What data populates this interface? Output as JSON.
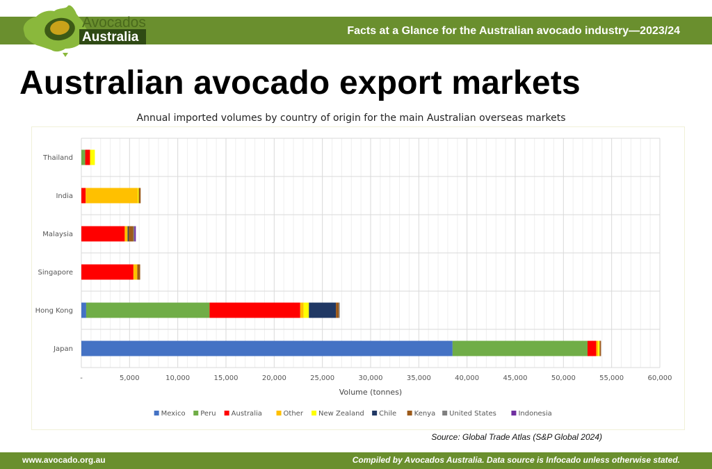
{
  "header": {
    "logo_line1": "Avocados",
    "logo_line2": "Australia",
    "banner_text": "Facts at a Glance for the Australian avocado industry—2023/24"
  },
  "page_title": "Australian avocado export markets",
  "source_note": "Source: Global Trade Atlas (S&P Global 2024)",
  "footer": {
    "website": "www.avocado.org.au",
    "credit": "Compiled by Avocados Australia. Data source is Infocado unless otherwise stated."
  },
  "colors": {
    "header_green": "#6a8f2e",
    "logo_dark": "#2f4a14"
  },
  "chart_data": {
    "type": "bar",
    "orientation": "horizontal",
    "stacked": true,
    "title": "Annual imported volumes by country of origin for the main Australian overseas markets",
    "xlabel": "Volume (tonnes)",
    "ylabel": "",
    "xlim": [
      0,
      60000
    ],
    "x_ticks": [
      0,
      5000,
      10000,
      15000,
      20000,
      25000,
      30000,
      35000,
      40000,
      45000,
      50000,
      55000,
      60000
    ],
    "x_tick_labels": [
      "-",
      "5,000",
      "10,000",
      "15,000",
      "20,000",
      "25,000",
      "30,000",
      "35,000",
      "40,000",
      "45,000",
      "50,000",
      "55,000",
      "60,000"
    ],
    "grid": true,
    "legend_position": "bottom",
    "categories": [
      "Thailand",
      "India",
      "Malaysia",
      "Singapore",
      "Hong Kong",
      "Japan"
    ],
    "series": [
      {
        "name": "Mexico",
        "color": "#4472c4",
        "values": [
          0,
          0,
          0,
          0,
          500,
          38500
        ]
      },
      {
        "name": "Peru",
        "color": "#70ad47",
        "values": [
          400,
          0,
          0,
          0,
          12800,
          14000
        ]
      },
      {
        "name": "Australia",
        "color": "#ff0000",
        "values": [
          500,
          450,
          4500,
          5400,
          9400,
          900
        ]
      },
      {
        "name": "Other",
        "color": "#ffc000",
        "values": [
          0,
          5400,
          300,
          400,
          350,
          200
        ]
      },
      {
        "name": "New Zealand",
        "color": "#ffff00",
        "values": [
          500,
          100,
          0,
          0,
          550,
          150
        ]
      },
      {
        "name": "Chile",
        "color": "#203864",
        "values": [
          0,
          0,
          100,
          0,
          2800,
          0
        ]
      },
      {
        "name": "Kenya",
        "color": "#9c5a1a",
        "values": [
          0,
          200,
          500,
          300,
          300,
          150
        ]
      },
      {
        "name": "United States",
        "color": "#7f7f7f",
        "values": [
          0,
          0,
          100,
          0,
          100,
          0
        ]
      },
      {
        "name": "Indonesia",
        "color": "#7030a0",
        "values": [
          0,
          0,
          150,
          0,
          0,
          0
        ]
      }
    ]
  }
}
